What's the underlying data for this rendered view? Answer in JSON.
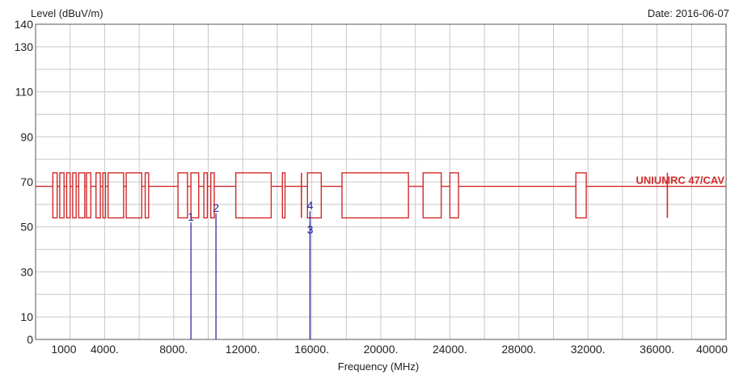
{
  "chart_data": {
    "type": "line",
    "title": "",
    "ylabel": "Level (dBuV/m)",
    "xlabel": "Frequency (MHz)",
    "date": "Date: 2016-06-07",
    "xlim": [
      0,
      40000
    ],
    "ylim": [
      0,
      140
    ],
    "grid": true,
    "yticks": [
      0,
      10,
      30,
      50,
      70,
      90,
      110,
      130,
      140
    ],
    "xticks": [
      {
        "v": 1000,
        "label": "1000"
      },
      {
        "v": 4000,
        "label": "4000."
      },
      {
        "v": 8000,
        "label": "8000."
      },
      {
        "v": 12000,
        "label": "12000."
      },
      {
        "v": 16000,
        "label": "16000."
      },
      {
        "v": 20000,
        "label": "20000."
      },
      {
        "v": 24000,
        "label": "24000."
      },
      {
        "v": 28000,
        "label": "28000."
      },
      {
        "v": 32000,
        "label": "32000."
      },
      {
        "v": 36000,
        "label": "36000."
      },
      {
        "v": 40000,
        "label": "40000"
      }
    ],
    "limit": {
      "baseline": 68,
      "upper": 74,
      "lower": 54,
      "color": "#d22a2a",
      "label": "UNIUMRC 47/CAV",
      "notches": [
        [
          1000,
          1250
        ],
        [
          1400,
          1650
        ],
        [
          1800,
          2000
        ],
        [
          2150,
          2350
        ],
        [
          2500,
          2850
        ],
        [
          2950,
          3200
        ],
        [
          3500,
          3750
        ],
        [
          3900,
          4050
        ],
        [
          4200,
          5100
        ],
        [
          5250,
          6150
        ],
        [
          6350,
          6550
        ],
        [
          8250,
          8800
        ],
        [
          9000,
          9450
        ],
        [
          9750,
          9950
        ],
        [
          10150,
          10350
        ],
        [
          11600,
          13650
        ],
        [
          14300,
          14450
        ],
        [
          15750,
          16550
        ],
        [
          17750,
          21600
        ],
        [
          22450,
          23500
        ],
        [
          24000,
          24500
        ],
        [
          31300,
          31900
        ]
      ],
      "spikes": [
        15400,
        36600
      ]
    },
    "markers": [
      {
        "label": "1",
        "x": 9000,
        "y": 52
      },
      {
        "label": "2",
        "x": 10450,
        "y": 56
      },
      {
        "label": "3",
        "x": 15900,
        "y": 52
      },
      {
        "label": "4",
        "x": 15900,
        "y": 57
      }
    ],
    "marker_color": "#1f1f9a"
  }
}
